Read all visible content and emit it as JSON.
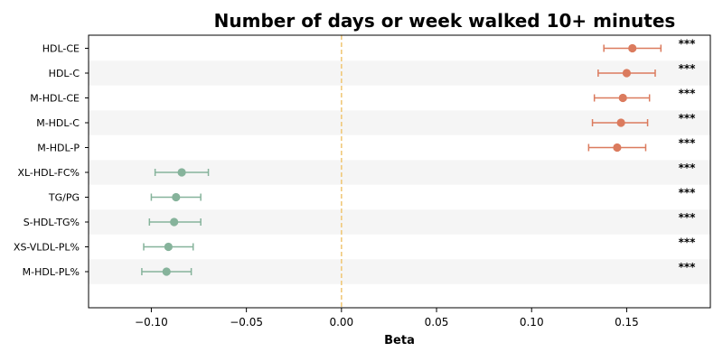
{
  "chart_data": {
    "type": "scatter",
    "title": "Number of days or week walked 10+ minutes",
    "xlabel": "Beta",
    "ylabel": "",
    "xlim": [
      -0.133,
      0.194
    ],
    "xticks": [
      -0.1,
      -0.05,
      0.0,
      0.05,
      0.1,
      0.15
    ],
    "xtick_labels": [
      "−0.10",
      "−0.05",
      "0.00",
      "0.05",
      "0.10",
      "0.15"
    ],
    "reference_line": 0.0,
    "grid": false,
    "legend": "none",
    "colors": {
      "positive": "#db7b5e",
      "negative": "#86b39b",
      "reference": "#f0c97a",
      "stripe": "#f5f5f5"
    },
    "points": [
      {
        "label": "HDL-CE",
        "beta": 0.153,
        "lo": 0.138,
        "hi": 0.168,
        "sig": "***"
      },
      {
        "label": "HDL-C",
        "beta": 0.15,
        "lo": 0.135,
        "hi": 0.165,
        "sig": "***"
      },
      {
        "label": "M-HDL-CE",
        "beta": 0.148,
        "lo": 0.133,
        "hi": 0.162,
        "sig": "***"
      },
      {
        "label": "M-HDL-C",
        "beta": 0.147,
        "lo": 0.132,
        "hi": 0.161,
        "sig": "***"
      },
      {
        "label": "M-HDL-P",
        "beta": 0.145,
        "lo": 0.13,
        "hi": 0.16,
        "sig": "***"
      },
      {
        "label": "XL-HDL-FC%",
        "beta": -0.084,
        "lo": -0.098,
        "hi": -0.07,
        "sig": "***"
      },
      {
        "label": "TG/PG",
        "beta": -0.087,
        "lo": -0.1,
        "hi": -0.074,
        "sig": "***"
      },
      {
        "label": "S-HDL-TG%",
        "beta": -0.088,
        "lo": -0.101,
        "hi": -0.074,
        "sig": "***"
      },
      {
        "label": "XS-VLDL-PL%",
        "beta": -0.091,
        "lo": -0.104,
        "hi": -0.078,
        "sig": "***"
      },
      {
        "label": "M-HDL-PL%",
        "beta": -0.092,
        "lo": -0.105,
        "hi": -0.079,
        "sig": "***"
      }
    ]
  }
}
